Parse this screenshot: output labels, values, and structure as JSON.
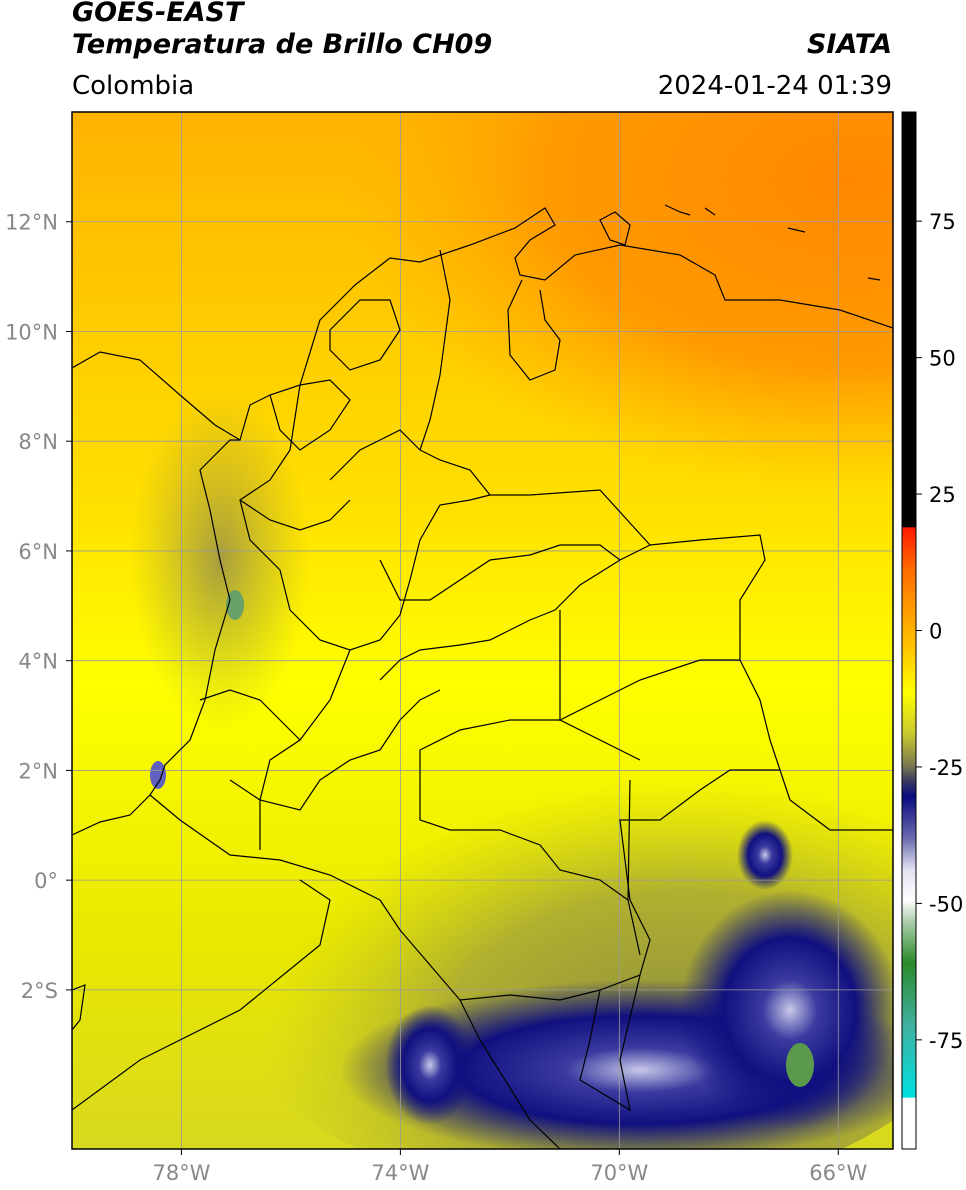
{
  "header": {
    "title_line1": "GOES-EAST",
    "title_line2": "Temperatura de Brillo CH09",
    "org": "SIATA",
    "region": "Colombia",
    "timestamp": "2024-01-24 01:39"
  },
  "map": {
    "lon_range": [
      -80,
      -65
    ],
    "lat_range": [
      -4.9,
      14
    ],
    "lon_ticks": [
      {
        "value": -78,
        "label": "78°W"
      },
      {
        "value": -74,
        "label": "74°W"
      },
      {
        "value": -70,
        "label": "70°W"
      },
      {
        "value": -66,
        "label": "66°W"
      }
    ],
    "lat_ticks": [
      {
        "value": 12,
        "label": "12°N"
      },
      {
        "value": 10,
        "label": "10°N"
      },
      {
        "value": 8,
        "label": "8°N"
      },
      {
        "value": 6,
        "label": "6°N"
      },
      {
        "value": 4,
        "label": "4°N"
      },
      {
        "value": 2,
        "label": "2°N"
      },
      {
        "value": 0,
        "label": "0°"
      },
      {
        "value": -2,
        "label": "2°S"
      }
    ],
    "grid": true
  },
  "colorbar": {
    "range": [
      -95,
      95
    ],
    "ticks": [
      {
        "value": 75,
        "label": "75"
      },
      {
        "value": 50,
        "label": "50"
      },
      {
        "value": 25,
        "label": "25"
      },
      {
        "value": 0,
        "label": "0"
      },
      {
        "value": -25,
        "label": "-25"
      },
      {
        "value": -50,
        "label": "-50"
      },
      {
        "value": -75,
        "label": "-75"
      }
    ],
    "colors": {
      "top": "#000000",
      "red": "#ff1a00",
      "orange": "#ff8a00",
      "yellow": "#ffff00",
      "olive": "#a6a63a",
      "gray": "#5a5a6a",
      "navy": "#0a0a80",
      "white": "#ffffff",
      "green": "#2a8a2a",
      "cyan": "#00e0e0"
    }
  }
}
